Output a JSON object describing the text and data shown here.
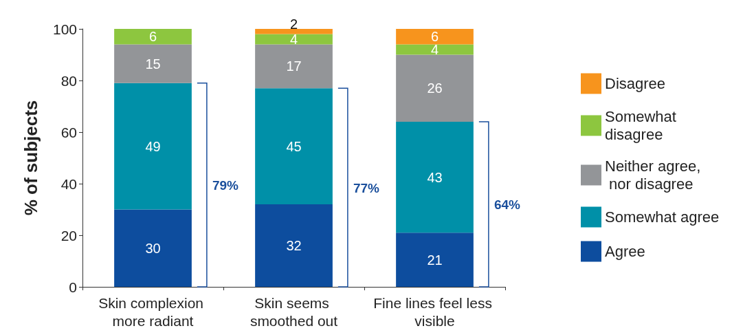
{
  "chart_data": {
    "type": "bar",
    "stacked": true,
    "ylabel": "% of subjects",
    "categories": [
      "Skin complexion more radiant",
      "Skin seems smoothed out",
      "Fine lines feel less visible"
    ],
    "series": [
      {
        "name": "Agree",
        "color": "#0d4d9e",
        "values": [
          30,
          32,
          21
        ]
      },
      {
        "name": "Somewhat agree",
        "color": "#0090a8",
        "values": [
          49,
          45,
          43
        ]
      },
      {
        "name": "Neither agree, nor disagree",
        "color": "#939598",
        "values": [
          15,
          17,
          26
        ]
      },
      {
        "name": "Somewhat disagree",
        "color": "#8dc63f",
        "values": [
          6,
          4,
          4
        ]
      },
      {
        "name": "Disagree",
        "color": "#f7941d",
        "values": [
          null,
          2,
          6
        ]
      }
    ],
    "ylim": [
      0,
      100
    ],
    "yticks": [
      0,
      20,
      40,
      60,
      80,
      100
    ],
    "grid": false,
    "legend": "right",
    "data_labels": true,
    "annotations": [
      "79%",
      "77%",
      "64%"
    ]
  }
}
